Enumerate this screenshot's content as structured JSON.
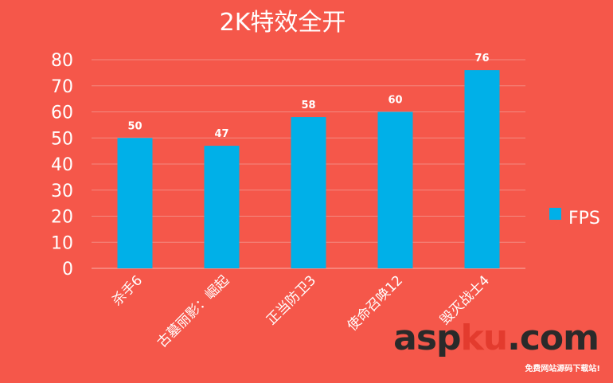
{
  "chart_data": {
    "type": "bar",
    "title": "2K特效全开",
    "categories": [
      "杀手6",
      "古墓丽影：崛起",
      "正当防卫3",
      "使命召唤12",
      "毁灭战士4"
    ],
    "series": [
      {
        "name": "FPS",
        "values": [
          50,
          47,
          58,
          60,
          76
        ]
      }
    ],
    "ylim": [
      0,
      80
    ],
    "yticks": [
      0,
      10,
      20,
      30,
      40,
      50,
      60,
      70,
      80
    ],
    "xlabel": "",
    "ylabel": "",
    "grid": true,
    "legend": "right",
    "colors": {
      "background": "#F5574A",
      "bar": "#00B0E8",
      "text": "#FFFFFF",
      "grid": "#F48A80"
    }
  },
  "watermark": {
    "text_a": "asp",
    "text_b": "ku",
    "text_c": ".com",
    "tagline": "免费网站源码下载站!"
  }
}
